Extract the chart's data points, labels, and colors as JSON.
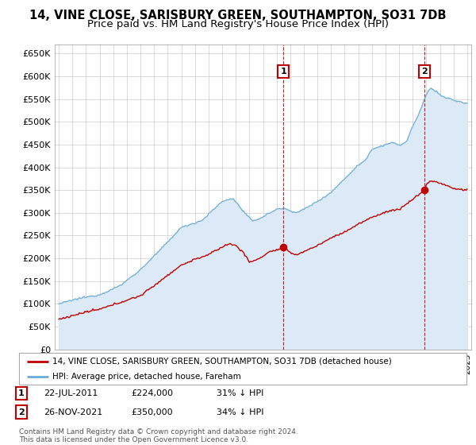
{
  "title": "14, VINE CLOSE, SARISBURY GREEN, SOUTHAMPTON, SO31 7DB",
  "subtitle": "Price paid vs. HM Land Registry's House Price Index (HPI)",
  "ylim": [
    0,
    670000
  ],
  "yticks": [
    0,
    50000,
    100000,
    150000,
    200000,
    250000,
    300000,
    350000,
    400000,
    450000,
    500000,
    550000,
    600000,
    650000
  ],
  "background_color": "#ffffff",
  "plot_bg_color": "#ffffff",
  "hpi_fill_color": "#dce9f7",
  "hpi_color": "#6baed6",
  "price_color": "#c00000",
  "vline_color": "#cc0000",
  "marker1_price": 224000,
  "marker2_price": 350000,
  "t_sale1": 2011.54,
  "t_sale2": 2021.87,
  "legend_text1": "14, VINE CLOSE, SARISBURY GREEN, SOUTHAMPTON, SO31 7DB (detached house)",
  "legend_text2": "HPI: Average price, detached house, Fareham",
  "table_row1": [
    "1",
    "22-JUL-2011",
    "£224,000",
    "31% ↓ HPI"
  ],
  "table_row2": [
    "2",
    "26-NOV-2021",
    "£350,000",
    "34% ↓ HPI"
  ],
  "footer": "Contains HM Land Registry data © Crown copyright and database right 2024.\nThis data is licensed under the Open Government Licence v3.0.",
  "title_fontsize": 10.5,
  "subtitle_fontsize": 9.5
}
